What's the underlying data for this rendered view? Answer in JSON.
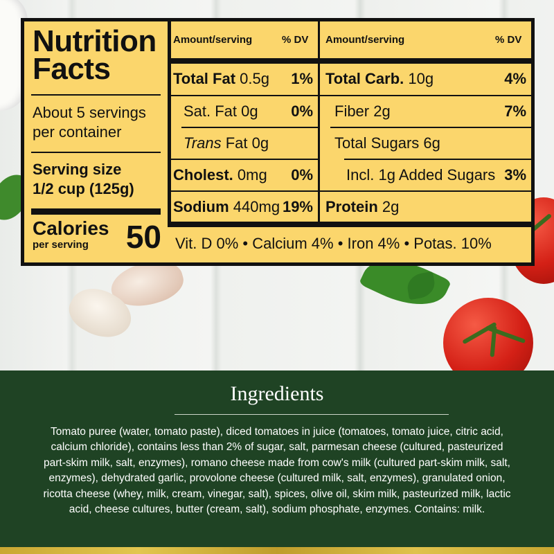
{
  "nutrition": {
    "title_line1": "Nutrition",
    "title_line2": "Facts",
    "servings_line1": "About 5 servings",
    "servings_line2": "per container",
    "serving_size_label": "Serving size",
    "serving_size_value": "1/2 cup (125g)",
    "calories_label": "Calories",
    "calories_sub": "per serving",
    "calories_value": "50",
    "col_header_amount": "Amount/serving",
    "col_header_dv": "% DV",
    "left_rows": [
      {
        "name": "Total Fat",
        "amount": "0.5g",
        "dv": "1%",
        "bold": true
      },
      {
        "name": "Sat. Fat",
        "amount": "0g",
        "dv": "0%",
        "bold": false
      },
      {
        "name": "Trans",
        "suffix": " Fat",
        "amount": "0g",
        "dv": "",
        "bold": false
      },
      {
        "name": "Cholest.",
        "amount": "0mg",
        "dv": "0%",
        "bold": true
      },
      {
        "name": "Sodium",
        "amount": "440mg",
        "dv": "19%",
        "bold": true
      }
    ],
    "right_rows": [
      {
        "name": "Total Carb.",
        "amount": "10g",
        "dv": "4%",
        "bold": true
      },
      {
        "name": "Fiber",
        "amount": "2g",
        "dv": "7%",
        "bold": false
      },
      {
        "name": "Total Sugars",
        "amount": "6g",
        "dv": "",
        "bold": false
      },
      {
        "name": "Incl. 1g Added Sugars",
        "amount": "",
        "dv": "3%",
        "bold": false
      },
      {
        "name": "Protein",
        "amount": "2g",
        "dv": "",
        "bold": true
      }
    ],
    "vitamins": "Vit. D 0% • Calcium 4% • Iron 4% • Potas. 10%"
  },
  "ingredients": {
    "title": "Ingredients",
    "text": "Tomato puree (water, tomato paste), diced tomatoes in juice (tomatoes, tomato juice, citric acid, calcium chloride), contains less than 2% of sugar, salt, parmesan cheese (cultured, pasteurized part-skim milk, salt, enzymes), romano cheese made from cow's milk (cultured part-skim milk, salt, enzymes), dehydrated garlic, provolone cheese (cultured milk, salt, enzymes), granulated onion, ricotta cheese (whey, milk, cream, vinegar, salt), spices, olive oil, skim milk, pasteurized milk, lactic acid, cheese cultures, butter (cream, salt), sodium phosphate, enzymes. Contains: milk."
  },
  "colors": {
    "panel": "#fbd66c",
    "green": "#1f4324"
  }
}
